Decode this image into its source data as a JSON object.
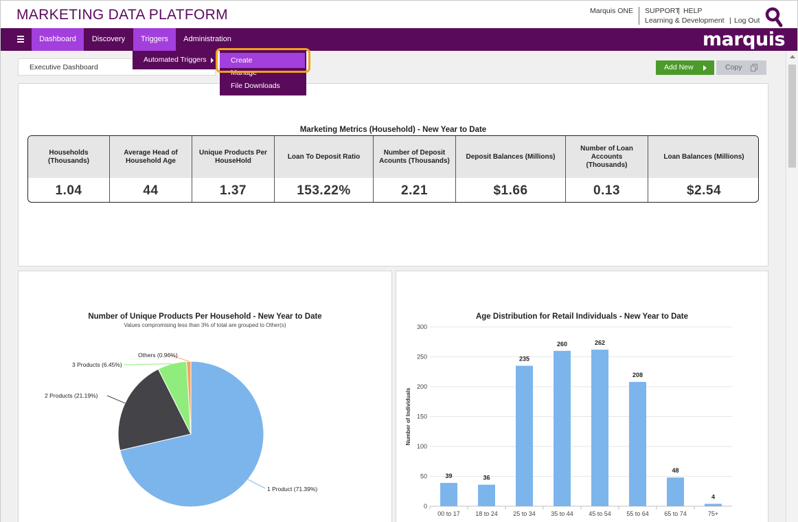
{
  "header": {
    "app_title": "MARKETING DATA PLATFORM",
    "user_link": "Marquis ONE",
    "support_label": "SUPPORT",
    "help_label": "HELP",
    "sep1": "|",
    "sep2": "|",
    "learning_label": "Learning & Development",
    "logout_label": "Log Out",
    "brand": "marquis",
    "brand_color": "#5a0a5a",
    "accent_color": "#a33fdc",
    "highlight_color": "#f3a21b"
  },
  "nav": {
    "items": [
      {
        "label": "Dashboard",
        "active": true
      },
      {
        "label": "Discovery",
        "active": false
      },
      {
        "label": "Triggers",
        "active": true
      },
      {
        "label": "Administration",
        "active": false
      }
    ],
    "submenu": {
      "automated_triggers": "Automated Triggers",
      "create": "Create",
      "manage": "Manage",
      "file_downloads": "File Downloads"
    }
  },
  "toolbar": {
    "dashboard_select": "Executive Dashboard",
    "add_new": "Add New",
    "copy": "Copy"
  },
  "metrics": {
    "title": "Marketing Metrics (Household) - New Year to Date",
    "columns": [
      {
        "header": "Households (Thousands)",
        "value": "1.04"
      },
      {
        "header": "Average Head of Household Age",
        "value": "44"
      },
      {
        "header": "Unique Products Per HouseHold",
        "value": "1.37"
      },
      {
        "header": "Loan To Deposit Ratio",
        "value": "153.22%"
      },
      {
        "header": "Number of Deposit Acounts (Thousands)",
        "value": "2.21"
      },
      {
        "header": "Deposit Balances (Millions)",
        "value": "$1.66"
      },
      {
        "header": "Number of Loan Accounts (Thousands)",
        "value": "0.13"
      },
      {
        "header": "Loan Balances (Millions)",
        "value": "$2.54"
      }
    ]
  },
  "chart_data": [
    {
      "type": "pie",
      "title": "Number of Unique Products Per Household - New Year to Date",
      "subtitle": "Values compromising less than 3% of total are grouped to Other(s)",
      "slices": [
        {
          "label": "1 Product",
          "percent": "(71.39%)",
          "value": 71.39,
          "color": "#7cb5ec"
        },
        {
          "label": "2 Products",
          "percent": "(21.19%)",
          "value": 21.19,
          "color": "#434348"
        },
        {
          "label": "3 Products",
          "percent": "(6.45%)",
          "value": 6.45,
          "color": "#90ed7d"
        },
        {
          "label": "Others",
          "percent": "(0.96%)",
          "value": 0.96,
          "color": "#f7a35c"
        }
      ]
    },
    {
      "type": "bar",
      "title": "Age Distribution for Retail Individuals - New Year to Date",
      "xlabel": "",
      "ylabel": "Number of Individuals",
      "ylim": [
        0,
        300
      ],
      "yticks": [
        0,
        50,
        100,
        150,
        200,
        250,
        300
      ],
      "categories": [
        "00 to 17",
        "18 to 24",
        "25 to 34",
        "35 to 44",
        "45 to 54",
        "55 to 64",
        "65 to 74",
        "75+"
      ],
      "values": [
        39,
        36,
        235,
        260,
        262,
        208,
        48,
        4
      ],
      "bar_color": "#7cb5ec"
    }
  ]
}
